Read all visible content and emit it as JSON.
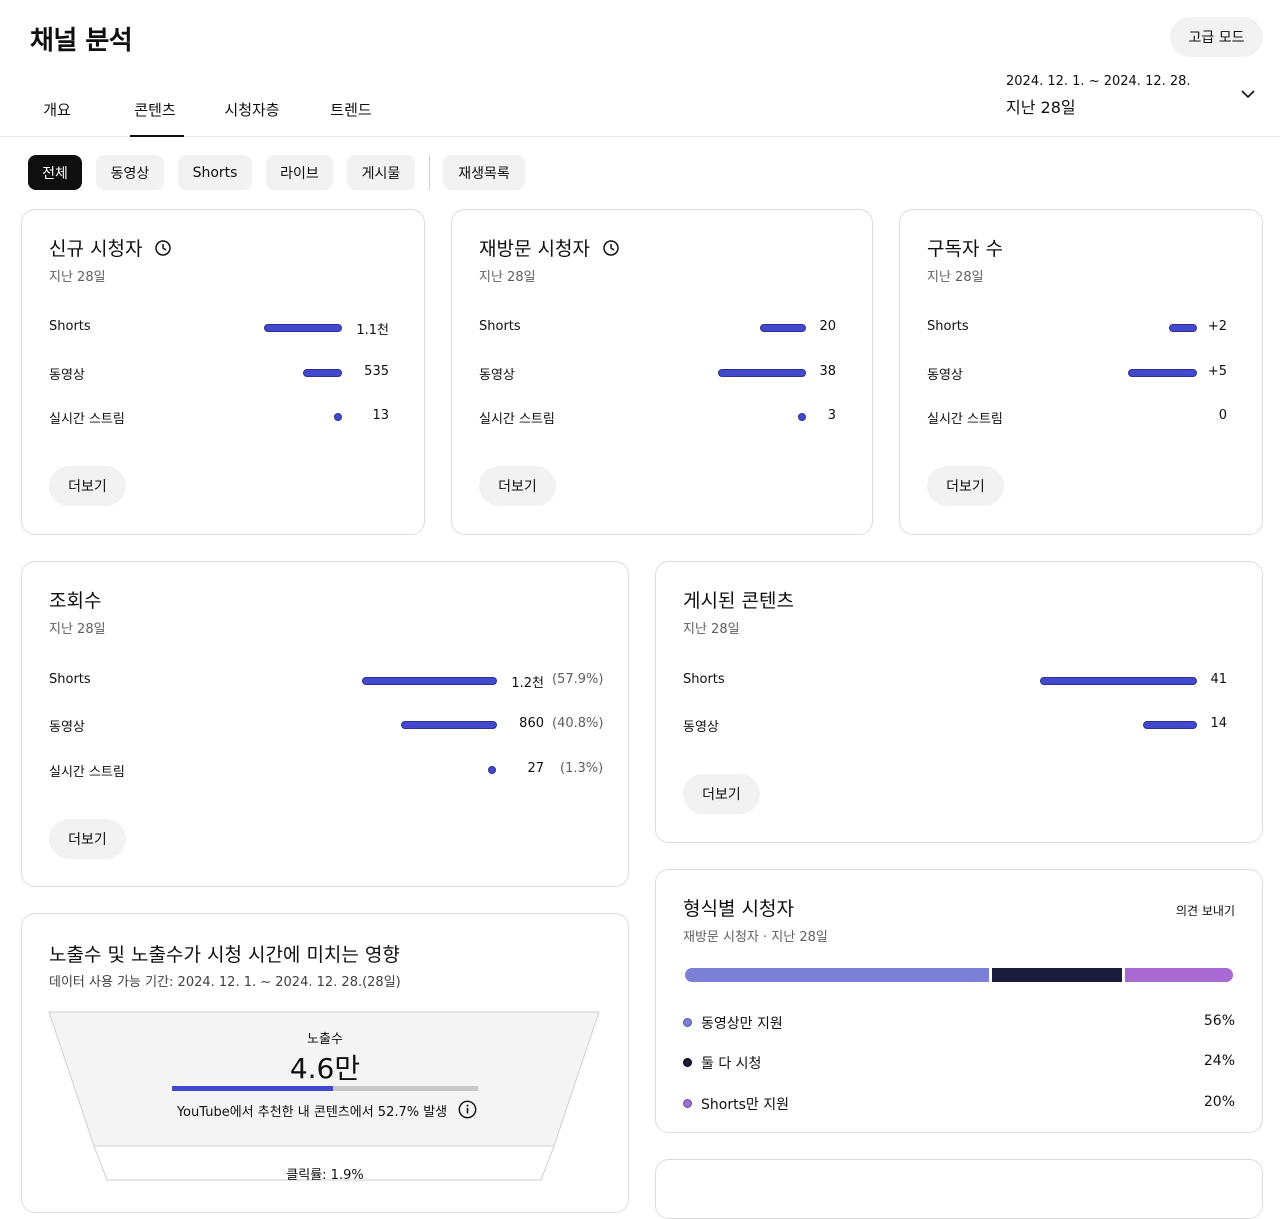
{
  "header": {
    "title": "채널 분석",
    "advanced_mode": "고급 모드",
    "tabs": [
      "개요",
      "콘텐츠",
      "시청자층",
      "트렌드"
    ],
    "active_tab": 1,
    "date_range": "2024. 12. 1. ~ 2024. 12. 28.",
    "date_label": "지난 28일"
  },
  "chips": {
    "items": [
      "전체",
      "동영상",
      "Shorts",
      "라이브",
      "게시물",
      "재생목록"
    ],
    "active": 0
  },
  "new_viewers": {
    "title": "신규 시청자",
    "subtitle": "지난 28일",
    "rows": [
      {
        "label": "Shorts",
        "value": "1.1천",
        "level": 1.0
      },
      {
        "label": "동영상",
        "value": "535",
        "level": 0.49
      },
      {
        "label": "실시간 스트림",
        "value": "13",
        "level": 0
      }
    ],
    "more": "더보기"
  },
  "returning_viewers": {
    "title": "재방문 시청자",
    "subtitle": "지난 28일",
    "rows": [
      {
        "label": "Shorts",
        "value": "20",
        "level": 0.53
      },
      {
        "label": "동영상",
        "value": "38",
        "level": 1.0
      },
      {
        "label": "실시간 스트림",
        "value": "3",
        "level": 0
      }
    ],
    "more": "더보기"
  },
  "subscribers": {
    "title": "구독자 수",
    "subtitle": "지난 28일",
    "rows": [
      {
        "label": "Shorts",
        "value": "+2",
        "level": 0.4
      },
      {
        "label": "동영상",
        "value": "+5",
        "level": 1.0
      },
      {
        "label": "실시간 스트림",
        "value": "0",
        "level": null
      }
    ],
    "more": "더보기"
  },
  "views": {
    "title": "조회수",
    "subtitle": "지난 28일",
    "rows": [
      {
        "label": "Shorts",
        "value": "1.2천",
        "pct": "(57.9%)",
        "level": 1.0
      },
      {
        "label": "동영상",
        "value": "860",
        "pct": "(40.8%)",
        "level": 0.7
      },
      {
        "label": "실시간 스트림",
        "value": "27",
        "pct": "(1.3%)",
        "level": 0
      }
    ],
    "more": "더보기"
  },
  "published": {
    "title": "게시된 콘텐츠",
    "subtitle": "지난 28일",
    "rows": [
      {
        "label": "Shorts",
        "value": "41",
        "level": 1.0
      },
      {
        "label": "동영상",
        "value": "14",
        "level": 0.34
      }
    ],
    "more": "더보기"
  },
  "format_viewers": {
    "title": "형식별 시청자",
    "subtitle": "재방문 시청자 · 지난 28일",
    "feedback": "의견 보내기",
    "segments": [
      {
        "label": "동영상만 지원",
        "value": "56%",
        "share": 56,
        "color": "#7b7fd6"
      },
      {
        "label": "둘 다 시청",
        "value": "24%",
        "share": 24,
        "color": "#1b1c3c"
      },
      {
        "label": "Shorts만 지원",
        "value": "20%",
        "share": 20,
        "color": "#a86ad2"
      }
    ]
  },
  "impressions": {
    "title": "노출수 및 노출수가 시청 시간에 미치는 영향",
    "subtitle": "데이터 사용 가능 기간: 2024. 12. 1. ~ 2024. 12. 28.(28일)",
    "imp_label": "노출수",
    "imp_value": "4.6만",
    "imp_share": 0.527,
    "note": "YouTube에서 추천한 내 콘텐츠에서 52.7% 발생",
    "ctr_label": "클릭률: 1.9%"
  }
}
